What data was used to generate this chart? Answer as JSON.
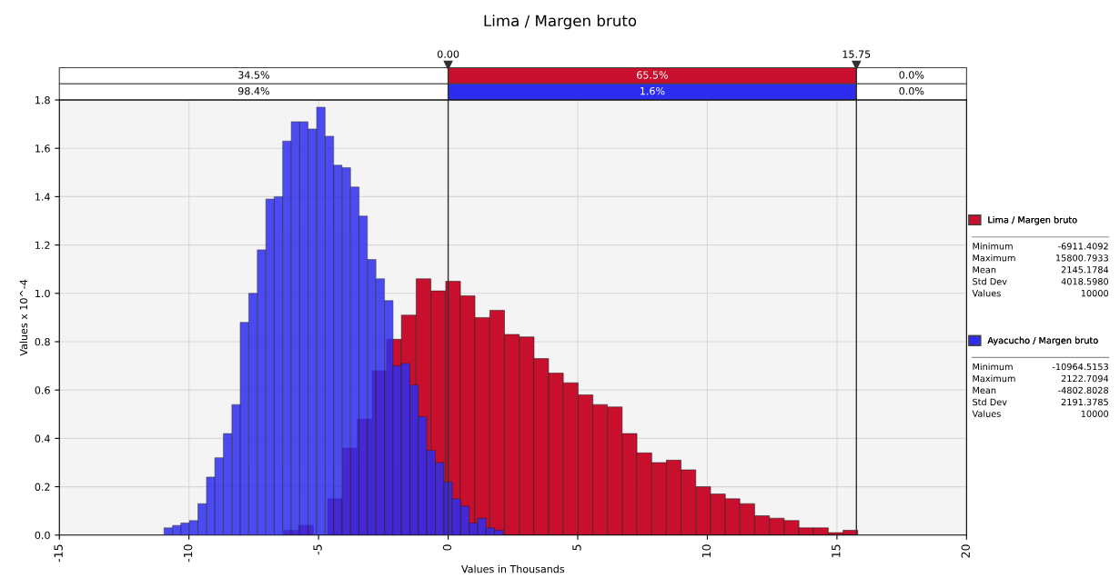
{
  "chart_data": {
    "type": "bar",
    "title": "Lima / Margen bruto",
    "xlabel": "Values in Thousands",
    "ylabel": "Values x 10^-4",
    "xlim": [
      -15,
      20
    ],
    "xticks": [
      -15,
      -10,
      -5,
      0,
      5,
      10,
      15,
      20
    ],
    "ylim": [
      0,
      1.8
    ],
    "yticks": [
      {
        "value": 0,
        "label": "0.0"
      },
      {
        "value": 0.2,
        "label": "0.2"
      },
      {
        "value": 0.4,
        "label": "0.4"
      },
      {
        "value": 0.6,
        "label": "0.6"
      },
      {
        "value": 0.8,
        "label": "0.8"
      },
      {
        "value": 1.0,
        "label": "1.0"
      },
      {
        "value": 1.2,
        "label": "1.2"
      },
      {
        "value": 1.4,
        "label": "1.4"
      },
      {
        "value": 1.6,
        "label": "1.6"
      },
      {
        "value": 1.8,
        "label": "1.8"
      }
    ],
    "grid": true,
    "legend": "right",
    "series": [
      {
        "name": "Lima / Margen bruto",
        "color": "#c8102e",
        "x": [
          -6.06,
          -5.49,
          -4.92,
          -4.36,
          -3.79,
          -3.22,
          -2.65,
          -2.09,
          -1.52,
          -0.95,
          -0.38,
          0.19,
          0.75,
          1.32,
          1.89,
          2.46,
          3.03,
          3.59,
          4.16,
          4.73,
          5.3,
          5.86,
          6.43,
          7.0,
          7.57,
          8.14,
          8.7,
          9.27,
          9.84,
          10.41,
          10.97,
          11.54,
          12.11,
          12.68,
          13.25,
          13.81,
          14.38,
          14.95,
          15.52
        ],
        "values": [
          0.02,
          0.04,
          null,
          0.15,
          0.36,
          0.48,
          0.68,
          0.81,
          0.91,
          1.06,
          1.01,
          1.05,
          0.99,
          0.9,
          0.93,
          0.83,
          0.82,
          0.73,
          0.67,
          0.63,
          0.58,
          0.54,
          0.53,
          0.42,
          0.34,
          0.3,
          0.31,
          0.27,
          0.2,
          0.17,
          0.15,
          0.13,
          0.08,
          0.07,
          0.06,
          0.03,
          0.03,
          0.01,
          0.02
        ]
      },
      {
        "name": "Ayacucho / Margen bruto",
        "color": "#2d2df0",
        "x": [
          -10.8,
          -10.47,
          -10.15,
          -9.82,
          -9.49,
          -9.16,
          -8.84,
          -8.51,
          -8.18,
          -7.86,
          -7.53,
          -7.2,
          -6.87,
          -6.55,
          -6.22,
          -5.89,
          -5.57,
          -5.24,
          -4.91,
          -4.58,
          -4.26,
          -3.93,
          -3.6,
          -3.28,
          -2.95,
          -2.62,
          -2.29,
          -1.97,
          -1.64,
          -1.31,
          -0.99,
          -0.66,
          -0.33,
          0,
          0.32,
          0.65,
          0.98,
          1.3,
          1.63,
          1.96
        ],
        "values": [
          0.03,
          0.04,
          0.05,
          0.06,
          0.13,
          0.24,
          0.32,
          0.42,
          0.54,
          0.88,
          1.0,
          1.18,
          1.39,
          1.4,
          1.63,
          1.71,
          1.71,
          1.68,
          1.77,
          1.65,
          1.53,
          1.52,
          1.44,
          1.32,
          1.14,
          1.06,
          0.97,
          0.7,
          0.71,
          0.62,
          0.49,
          0.35,
          0.3,
          0.22,
          0.15,
          0.12,
          0.05,
          0.07,
          0.03,
          0.02
        ]
      }
    ],
    "ref_lines": [
      {
        "axis": "x",
        "value": 0,
        "label": "0.00"
      },
      {
        "axis": "x",
        "value": 15.75,
        "label": "15.75"
      }
    ],
    "annotations": [
      "34.5%",
      "65.5%",
      "0.0%",
      "98.4%",
      "1.6%",
      "0.0%",
      "Minimum",
      "-6911.4092",
      "Maximum",
      "15800.7933",
      "Mean",
      "2145.1784",
      "Std Dev",
      "4018.5980",
      "Values",
      "10000",
      "Minimum",
      "-10964.5153",
      "Maximum",
      "2122.7094",
      "Mean",
      "-4802.8028",
      "Std Dev",
      "2191.3785",
      "Values",
      "10000"
    ]
  }
}
